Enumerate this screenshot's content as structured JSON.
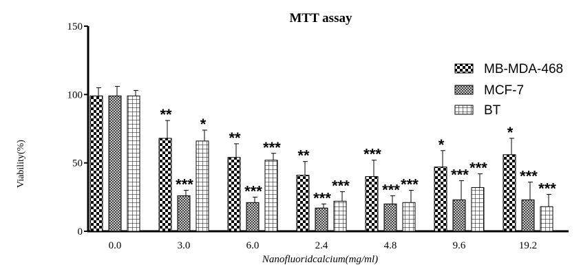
{
  "chart_data": {
    "type": "bar",
    "title": "MTT assay",
    "xlabel": "Nanofluoridcalcium(mg/ml)",
    "ylabel": "Viability(%)",
    "ylim": [
      0,
      150
    ],
    "yticks": [
      "0",
      "50",
      "100",
      "150"
    ],
    "categories": [
      "0.0",
      "3.0",
      "6.0",
      "2.4",
      "4.8",
      "9.6",
      "19.2"
    ],
    "legend_position": "right",
    "series": [
      {
        "name": "MB-MDA-468",
        "pattern": "checker",
        "values": [
          99,
          68,
          54,
          41,
          40,
          47,
          56
        ],
        "errors": [
          6,
          13,
          10,
          10,
          12,
          12,
          12
        ],
        "significance": [
          "",
          "**",
          "**",
          "**",
          "***",
          "*",
          "*"
        ]
      },
      {
        "name": "MCF-7",
        "pattern": "crosshatch",
        "values": [
          99,
          26,
          21,
          17,
          20,
          23,
          23
        ],
        "errors": [
          7,
          4,
          4,
          3,
          6,
          14,
          13
        ],
        "significance": [
          "",
          "***",
          "***",
          "***",
          "***",
          "***",
          "***"
        ]
      },
      {
        "name": "BT",
        "pattern": "grid",
        "values": [
          99,
          66,
          52,
          22,
          21,
          32,
          18
        ],
        "errors": [
          4,
          8,
          5,
          7,
          9,
          10,
          9
        ],
        "significance": [
          "",
          "*",
          "***",
          "***",
          "***",
          "***",
          "***"
        ]
      }
    ]
  }
}
